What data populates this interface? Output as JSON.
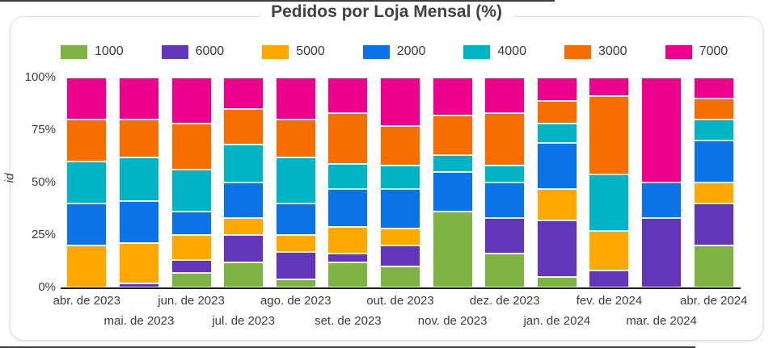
{
  "chart_data": {
    "type": "bar",
    "stacked": true,
    "percent": true,
    "title": "Pedidos por Loja Mensal (%)",
    "ylabel": "id",
    "ylim": [
      0,
      100
    ],
    "yticks": [
      {
        "value": 0,
        "label": "0%"
      },
      {
        "value": 25,
        "label": "25%"
      },
      {
        "value": 50,
        "label": "50%"
      },
      {
        "value": 75,
        "label": "75%"
      },
      {
        "value": 100,
        "label": "100%"
      }
    ],
    "legend_position": "top",
    "grid": false,
    "categories": [
      "abr. de 2023",
      "mai. de 2023",
      "jun. de 2023",
      "jul. de 2023",
      "ago. de 2023",
      "set. de 2023",
      "out. de 2023",
      "nov. de 2023",
      "dez. de 2023",
      "jan. de 2024",
      "fev. de 2024",
      "mar. de 2024",
      "abr. de 2024"
    ],
    "series": [
      {
        "name": "1000",
        "color": "#7CB342",
        "values": [
          0,
          0,
          7,
          12,
          4,
          12,
          10,
          36,
          16,
          5,
          0,
          0,
          20
        ]
      },
      {
        "name": "6000",
        "color": "#6236B8",
        "values": [
          0,
          2,
          6,
          13,
          13,
          4,
          10,
          0,
          17,
          27,
          8,
          33,
          20
        ]
      },
      {
        "name": "5000",
        "color": "#FFA800",
        "values": [
          20,
          19,
          12,
          8,
          8,
          13,
          8,
          0,
          0,
          15,
          19,
          0,
          10
        ]
      },
      {
        "name": "2000",
        "color": "#0B72E8",
        "values": [
          20,
          20,
          11,
          17,
          15,
          18,
          19,
          19,
          17,
          22,
          0,
          17,
          20
        ]
      },
      {
        "name": "4000",
        "color": "#00B4C5",
        "values": [
          20,
          21,
          20,
          18,
          22,
          12,
          11,
          8,
          8,
          9,
          27,
          0,
          10
        ]
      },
      {
        "name": "3000",
        "color": "#F66D00",
        "values": [
          20,
          18,
          22,
          17,
          18,
          24,
          19,
          19,
          25,
          11,
          37,
          0,
          10
        ]
      },
      {
        "name": "7000",
        "color": "#EC008C",
        "values": [
          20,
          20,
          22,
          15,
          20,
          17,
          23,
          18,
          17,
          11,
          9,
          50,
          10
        ]
      }
    ]
  }
}
